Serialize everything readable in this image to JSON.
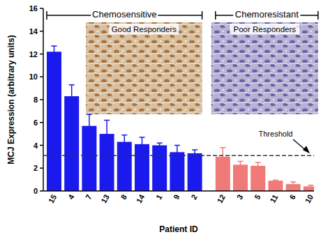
{
  "chart_data": {
    "type": "bar",
    "x_label": "Patient ID",
    "y_label": "MCJ Expression (arbitrary units)",
    "categories": [
      "15",
      "4",
      "7",
      "13",
      "8",
      "14",
      "1",
      "9",
      "2",
      "12",
      "3",
      "5",
      "11",
      "6",
      "10"
    ],
    "values": [
      12.2,
      8.3,
      5.7,
      5.0,
      4.3,
      4.1,
      4.0,
      3.4,
      3.3,
      3.0,
      2.3,
      2.2,
      0.9,
      0.6,
      0.4
    ],
    "errors": [
      0.5,
      1.0,
      1.0,
      1.2,
      0.6,
      0.6,
      0.2,
      0.6,
      0.3,
      0.8,
      0.3,
      0.3,
      0.05,
      0.2,
      0.1
    ],
    "colors": [
      "#1a1aee",
      "#1a1aee",
      "#1a1aee",
      "#1a1aee",
      "#1a1aee",
      "#1a1aee",
      "#1a1aee",
      "#1a1aee",
      "#1a1aee",
      "#f07a78",
      "#f07a78",
      "#f07a78",
      "#f07a78",
      "#f07a78",
      "#f07a78"
    ],
    "groups": [
      {
        "title": "Chemosensitive",
        "subtitle": "Good Responders",
        "count": 9
      },
      {
        "title": "Chemoresistant",
        "subtitle": "Poor Responders",
        "count": 6
      }
    ],
    "threshold": {
      "label": "Threshold",
      "value": 3.1
    },
    "ylim": [
      0,
      16
    ],
    "yticks": [
      0,
      2,
      4,
      6,
      8,
      10,
      12,
      14,
      16
    ],
    "grid": false
  }
}
